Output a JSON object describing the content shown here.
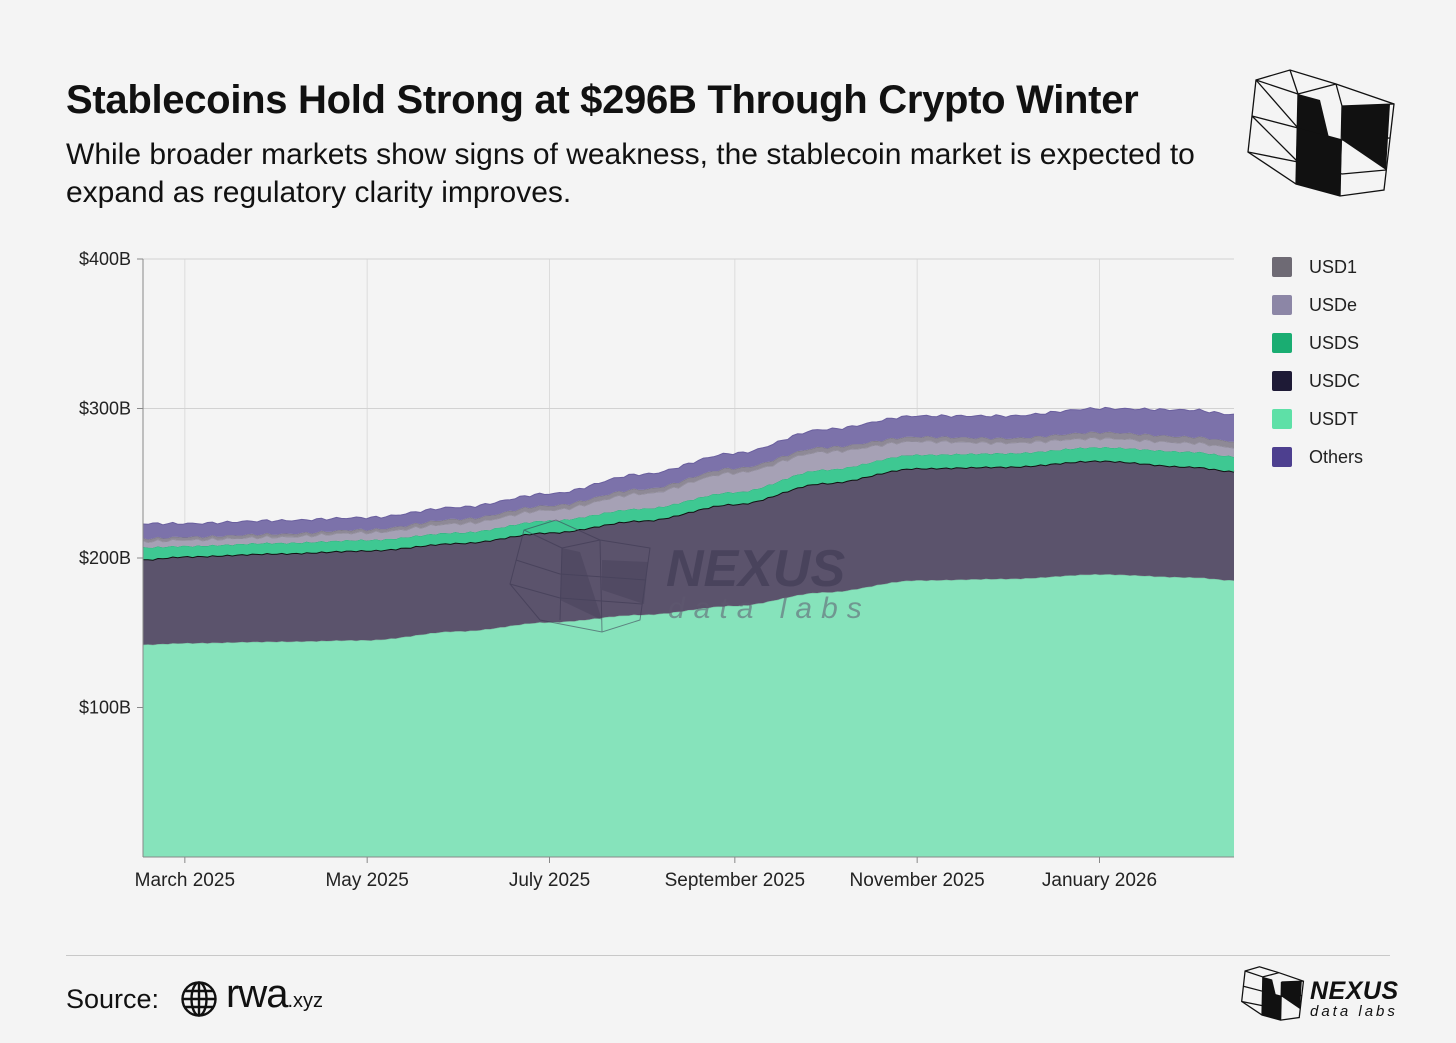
{
  "header": {
    "title": "Stablecoins Hold Strong at $296B Through Crypto Winter",
    "subtitle": "While broader markets show signs of weakness, the stablecoin market is expected to expand as regulatory clarity improves."
  },
  "chart_data": {
    "type": "area",
    "stacked": true,
    "title": "Stablecoins Hold Strong at $296B Through Crypto Winter",
    "subtitle": "While broader markets show signs of weakness, the stablecoin market is expected to expand as regulatory clarity improves.",
    "y_unit": "USD billions",
    "ylim": [
      0,
      400
    ],
    "y_ticks": [
      {
        "value": 100,
        "label": "$100B"
      },
      {
        "value": 200,
        "label": "$200B"
      },
      {
        "value": 300,
        "label": "$300B"
      },
      {
        "value": 400,
        "label": "$400B"
      }
    ],
    "x_ticks": [
      "March 2025",
      "May 2025",
      "July 2025",
      "September 2025",
      "November 2025",
      "January 2026"
    ],
    "x_dates": [
      "2025-02-15",
      "2025-03-01",
      "2025-04-01",
      "2025-05-01",
      "2025-06-01",
      "2025-07-01",
      "2025-08-01",
      "2025-09-01",
      "2025-10-01",
      "2025-11-01",
      "2025-12-01",
      "2026-01-01",
      "2026-02-01",
      "2026-02-15"
    ],
    "x_range": [
      "2025-02-15",
      "2026-02-15"
    ],
    "grid": true,
    "legend_position": "right",
    "series": [
      {
        "name": "USDT",
        "color": "#86e3bb",
        "values": [
          142,
          143,
          144,
          145,
          151,
          157,
          162,
          168,
          177,
          185,
          186,
          189,
          187,
          185
        ]
      },
      {
        "name": "USDC",
        "color": "#5b536c",
        "values": [
          57,
          58,
          59,
          60,
          59,
          60,
          63,
          68,
          73,
          75,
          75,
          76,
          74,
          73
        ]
      },
      {
        "name": "USDS",
        "color": "#3ec892",
        "values": [
          8,
          7,
          7,
          7,
          7,
          8,
          8,
          8,
          9,
          9,
          9,
          9,
          10,
          10
        ]
      },
      {
        "name": "USDe",
        "color": "#a6a1b5",
        "values": [
          4,
          4,
          4,
          5,
          6,
          7,
          10,
          13,
          12,
          9,
          7,
          6,
          6,
          6
        ]
      },
      {
        "name": "USD1",
        "color": "#8e8996",
        "values": [
          2,
          2,
          2,
          2,
          3,
          3,
          3,
          3,
          3,
          3,
          3,
          4,
          4,
          4
        ]
      },
      {
        "name": "Others",
        "color": "#7c72aa",
        "values": [
          10,
          9,
          9,
          8,
          8,
          8,
          10,
          10,
          12,
          14,
          15,
          16,
          18,
          18
        ]
      }
    ]
  },
  "legend": [
    {
      "name": "USD1",
      "color": "#6e6a74"
    },
    {
      "name": "USDe",
      "color": "#8c86a6"
    },
    {
      "name": "USDS",
      "color": "#1aad72"
    },
    {
      "name": "USDC",
      "color": "#1e1a36"
    },
    {
      "name": "USDT",
      "color": "#5ee0a7"
    },
    {
      "name": "Others",
      "color": "#4d3f8f"
    }
  ],
  "watermark": {
    "name": "NEXUS",
    "sub": "data labs"
  },
  "footer": {
    "source_label": "Source:",
    "source_name": "rwa",
    "source_suffix": ".xyz",
    "brand_name": "NEXUS",
    "brand_sub": "data labs"
  },
  "icons": {
    "source_icon": "globe-icon",
    "brand_logo": "nexus-cube-logo-icon"
  }
}
